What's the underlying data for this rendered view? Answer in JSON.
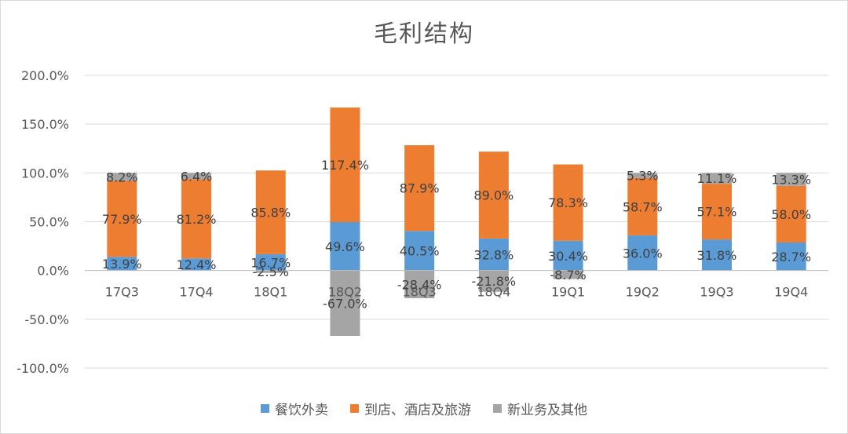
{
  "chart_data": {
    "type": "bar",
    "stacked": true,
    "title": "毛利结构",
    "categories": [
      "17Q3",
      "17Q4",
      "18Q1",
      "18Q2",
      "18Q3",
      "18Q4",
      "19Q1",
      "19Q2",
      "19Q3",
      "19Q4"
    ],
    "series": [
      {
        "name": "餐饮外卖",
        "color": "#5b9bd5",
        "values": [
          13.9,
          12.4,
          16.7,
          49.6,
          40.5,
          32.8,
          30.4,
          36.0,
          31.8,
          28.7
        ],
        "labels": [
          "13.9%",
          "12.4%",
          "16.7%",
          "49.6%",
          "40.5%",
          "32.8%",
          "30.4%",
          "36.0%",
          "31.8%",
          "28.7%"
        ]
      },
      {
        "name": "到店、酒店及旅游",
        "color": "#ed7d31",
        "values": [
          77.9,
          81.2,
          85.8,
          117.4,
          87.9,
          89.0,
          78.3,
          58.7,
          57.1,
          58.0
        ],
        "labels": [
          "77.9%",
          "81.2%",
          "85.8%",
          "117.4%",
          "87.9%",
          "89.0%",
          "78.3%",
          "58.7%",
          "57.1%",
          "58.0%"
        ]
      },
      {
        "name": "新业务及其他",
        "color": "#a5a5a5",
        "values": [
          8.2,
          6.4,
          -2.5,
          -67.0,
          -28.4,
          -21.8,
          -8.7,
          5.3,
          11.1,
          13.3
        ],
        "labels": [
          "8.2%",
          "6.4%",
          "-2.5%",
          "-67.0%",
          "-28.4%",
          "-21.8%",
          "-8.7%",
          "5.3%",
          "11.1%",
          "13.3%"
        ]
      }
    ],
    "ylim": [
      -100,
      200
    ],
    "yticks": [
      "200.0%",
      "150.0%",
      "100.0%",
      "50.0%",
      "0.0%",
      "-50.0%",
      "-100.0%"
    ],
    "grid": true,
    "legend_position": "bottom"
  }
}
